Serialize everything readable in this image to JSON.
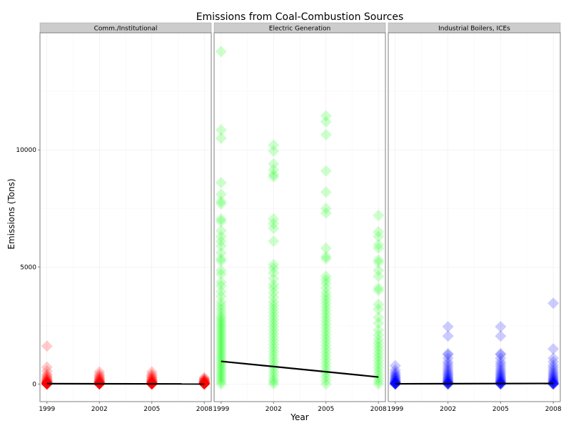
{
  "chart_data": {
    "type": "scatter",
    "title": "Emissions from Coal-Combustion Sources",
    "xlabel": "Year",
    "ylabel": "Emissions (Tons)",
    "x_ticks": [
      1999,
      2002,
      2005,
      2008
    ],
    "y_ticks": [
      0,
      5000,
      10000
    ],
    "ylim": [
      -750,
      15000
    ],
    "xlim": [
      1998.6,
      2008.4
    ],
    "grid": true,
    "legend": "none",
    "panels": [
      {
        "name": "Comm./Institutional",
        "color": "#ff0000",
        "trend": [
          {
            "x": 1999,
            "y": 15
          },
          {
            "x": 2008,
            "y": 5
          }
        ],
        "series": [
          {
            "x": 1999,
            "points": [
              1620,
              720,
              560,
              420,
              350,
              300,
              250,
              210,
              180,
              150,
              130,
              110,
              95,
              85,
              75,
              65,
              55,
              48,
              40,
              33,
              27,
              22,
              18,
              15,
              12,
              10,
              8,
              6,
              5,
              4,
              3,
              2,
              1,
              0.5
            ]
          },
          {
            "x": 2002,
            "points": [
              520,
              420,
              360,
              300,
              260,
              220,
              190,
              160,
              140,
              120,
              100,
              85,
              72,
              60,
              50,
              42,
              35,
              28,
              22,
              17,
              13,
              10,
              7,
              5,
              3,
              2,
              1,
              0.5
            ]
          },
          {
            "x": 2005,
            "points": [
              520,
              420,
              360,
              300,
              260,
              220,
              190,
              160,
              140,
              120,
              100,
              85,
              72,
              60,
              50,
              42,
              35,
              28,
              22,
              17,
              13,
              10,
              7,
              5,
              3,
              2,
              1,
              0.5
            ]
          },
          {
            "x": 2008,
            "points": [
              280,
              230,
              200,
              170,
              150,
              130,
              110,
              95,
              80,
              68,
              56,
              46,
              37,
              30,
              24,
              18,
              14,
              10,
              7,
              5,
              3,
              2,
              1,
              0.5
            ]
          }
        ]
      },
      {
        "name": "Electric Generation",
        "color": "#00ff00",
        "trend": [
          {
            "x": 1999,
            "y": 970
          },
          {
            "x": 2008,
            "y": 300
          }
        ],
        "series": [
          {
            "x": 1999,
            "points": [
              14200,
              10850,
              10500,
              8600,
              8100,
              7800,
              7700,
              7050,
              6950,
              6550,
              6300,
              6100,
              5900,
              5600,
              5350,
              5250,
              4850,
              4700,
              4350,
              4200,
              3950,
              3750,
              3500,
              3350,
              3200,
              3050,
              2900,
              2800,
              2700,
              2600,
              2500,
              2400,
              2300,
              2200,
              2100,
              2000,
              1900,
              1800,
              1700,
              1600,
              1500,
              1400,
              1300,
              1200,
              1100,
              1000,
              900,
              800,
              700,
              600,
              500,
              400,
              300,
              200,
              100,
              0
            ]
          },
          {
            "x": 2002,
            "points": [
              10200,
              9950,
              9400,
              9150,
              8950,
              8850,
              7050,
              6850,
              6650,
              6100,
              5100,
              4950,
              4750,
              4500,
              4250,
              4100,
              3900,
              3700,
              3500,
              3350,
              3200,
              3050,
              2900,
              2750,
              2600,
              2450,
              2300,
              2150,
              2000,
              1850,
              1700,
              1550,
              1400,
              1250,
              1100,
              950,
              800,
              650,
              500,
              350,
              200,
              100,
              0
            ]
          },
          {
            "x": 2005,
            "points": [
              11450,
              11200,
              10650,
              9100,
              8200,
              7500,
              7300,
              5800,
              5450,
              5350,
              4600,
              4450,
              4300,
              4100,
              3900,
              3750,
              3600,
              3450,
              3300,
              3150,
              3000,
              2850,
              2700,
              2550,
              2400,
              2250,
              2100,
              1950,
              1800,
              1650,
              1500,
              1350,
              1200,
              1050,
              900,
              750,
              600,
              450,
              300,
              150,
              0
            ]
          },
          {
            "x": 2008,
            "points": [
              7200,
              6500,
              6300,
              5950,
              5800,
              5300,
              5200,
              4850,
              4600,
              4100,
              4000,
              3400,
              3200,
              2850,
              2600,
              2300,
              2100,
              1900,
              1750,
              1600,
              1450,
              1300,
              1150,
              1000,
              850,
              700,
              550,
              400,
              250,
              120,
              0
            ]
          }
        ]
      },
      {
        "name": "Industrial Boilers, ICEs",
        "color": "#0000ff",
        "trend": [
          {
            "x": 1999,
            "y": 10
          },
          {
            "x": 2008,
            "y": 25
          }
        ],
        "series": [
          {
            "x": 1999,
            "points": [
              780,
              600,
              500,
              430,
              370,
              320,
              280,
              240,
              200,
              170,
              140,
              115,
              95,
              78,
              63,
              50,
              40,
              30,
              22,
              15,
              10,
              6,
              3,
              1,
              0.5
            ]
          },
          {
            "x": 2002,
            "points": [
              2450,
              2050,
              1300,
              1250,
              1100,
              950,
              850,
              750,
              650,
              570,
              500,
              440,
              380,
              330,
              280,
              240,
              200,
              165,
              135,
              108,
              85,
              65,
              48,
              34,
              22,
              13,
              6,
              2,
              0.5
            ]
          },
          {
            "x": 2005,
            "points": [
              2450,
              2050,
              1300,
              1250,
              1100,
              950,
              850,
              750,
              650,
              570,
              500,
              440,
              380,
              330,
              280,
              240,
              200,
              165,
              135,
              108,
              85,
              65,
              48,
              34,
              22,
              13,
              6,
              2,
              0.5
            ]
          },
          {
            "x": 2008,
            "points": [
              3450,
              1500,
              1100,
              950,
              800,
              700,
              600,
              520,
              450,
              390,
              330,
              280,
              235,
              195,
              160,
              130,
              102,
              78,
              58,
              42,
              28,
              17,
              9,
              4,
              1,
              0.5
            ]
          }
        ]
      }
    ]
  }
}
